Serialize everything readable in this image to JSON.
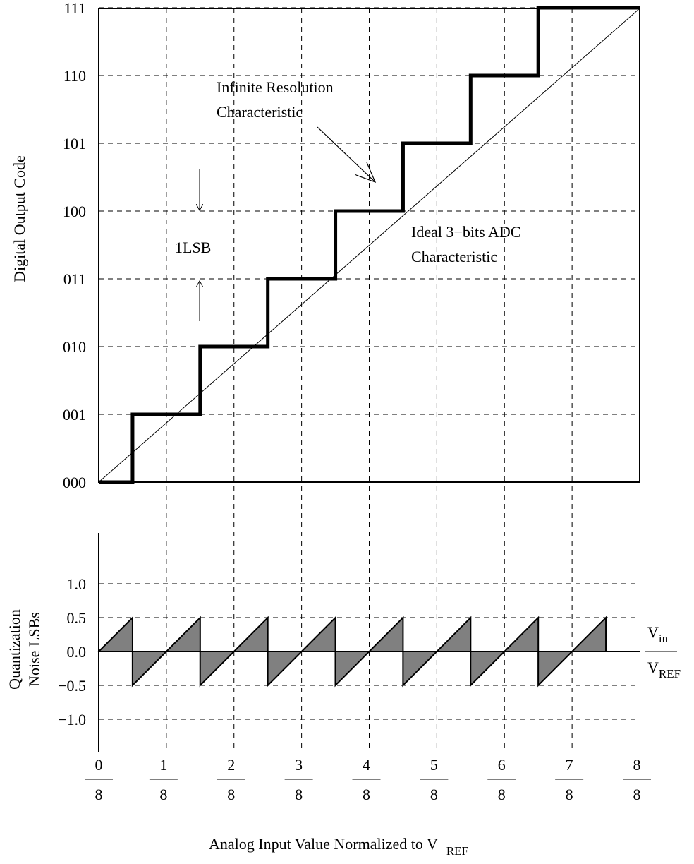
{
  "y_axis_title": "Digital Output Code",
  "y_tick_labels": [
    "000",
    "001",
    "010",
    "011",
    "100",
    "101",
    "110",
    "111"
  ],
  "noise_axis_title": [
    "Quantization",
    "Noise LSBs"
  ],
  "noise_tick_labels": [
    "1.0",
    "0.5",
    "0.0",
    "−0.5",
    "−1.0"
  ],
  "x_fractions": [
    {
      "num": "0",
      "den": "8"
    },
    {
      "num": "1",
      "den": "8"
    },
    {
      "num": "2",
      "den": "8"
    },
    {
      "num": "3",
      "den": "8"
    },
    {
      "num": "4",
      "den": "8"
    },
    {
      "num": "5",
      "den": "8"
    },
    {
      "num": "6",
      "den": "8"
    },
    {
      "num": "7",
      "den": "8"
    },
    {
      "num": "8",
      "den": "8"
    }
  ],
  "annotations": {
    "infinite": [
      "Infinite Resolution",
      "Characteristic"
    ],
    "ideal": [
      "Ideal 3−bits ADC",
      "Characteristic"
    ],
    "lsb": "1LSB"
  },
  "ratio": {
    "num": "V",
    "num_sub": "in",
    "den": "V",
    "den_sub": "REF"
  },
  "x_axis_title": {
    "text": "Analog Input Value Normalized to V",
    "sub": "REF"
  }
}
